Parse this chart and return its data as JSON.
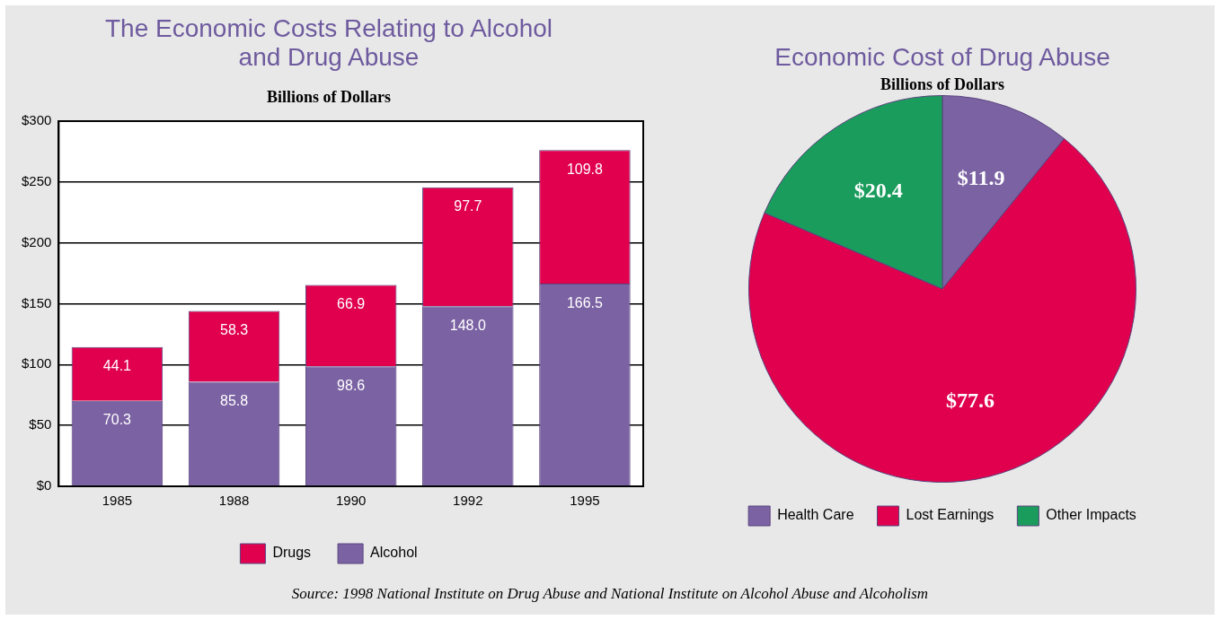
{
  "chart_data": [
    {
      "type": "bar",
      "title": "The Economic Costs Relating to Alcohol\nand Drug Abuse",
      "subtitle": "Billions of Dollars",
      "categories": [
        "1985",
        "1988",
        "1990",
        "1992",
        "1995"
      ],
      "stacked": true,
      "series": [
        {
          "name": "Alcohol",
          "color": "#7b62a3",
          "values": [
            70.3,
            85.8,
            98.6,
            148.0,
            166.5
          ],
          "value_labels": [
            "70.3",
            "85.8",
            "98.6",
            "148.0",
            "166.5"
          ]
        },
        {
          "name": "Drugs",
          "color": "#e0004d",
          "values": [
            44.1,
            58.3,
            66.9,
            97.7,
            109.8
          ],
          "value_labels": [
            "44.1",
            "58.3",
            "66.9",
            "97.7",
            "109.8"
          ]
        }
      ],
      "ylim": [
        0,
        300
      ],
      "yticks": [
        {
          "value": 0,
          "label": "$0"
        },
        {
          "value": 50,
          "label": "$50"
        },
        {
          "value": 100,
          "label": "$100"
        },
        {
          "value": 150,
          "label": "$150"
        },
        {
          "value": 200,
          "label": "$200"
        },
        {
          "value": 250,
          "label": "$250"
        },
        {
          "value": 300,
          "label": "$300"
        }
      ],
      "grid": "y",
      "legend": "bottom",
      "annotations": [
        "Source: 1998 National Institute on Drug Abuse and National Institute on  Alcohol Abuse and Alcoholism"
      ]
    },
    {
      "type": "pie",
      "title": "Economic Cost of Drug Abuse",
      "subtitle": "Billions of Dollars",
      "categories": [
        "Health Care",
        "Lost Earnings",
        "Other Impacts"
      ],
      "values": [
        11.9,
        77.6,
        20.4
      ],
      "colors": [
        "#7b62a3",
        "#e0004d",
        "#1a9c5c"
      ],
      "value_labels": [
        "$11.9",
        "$77.6",
        "$20.4"
      ],
      "legend": "bottom"
    }
  ]
}
